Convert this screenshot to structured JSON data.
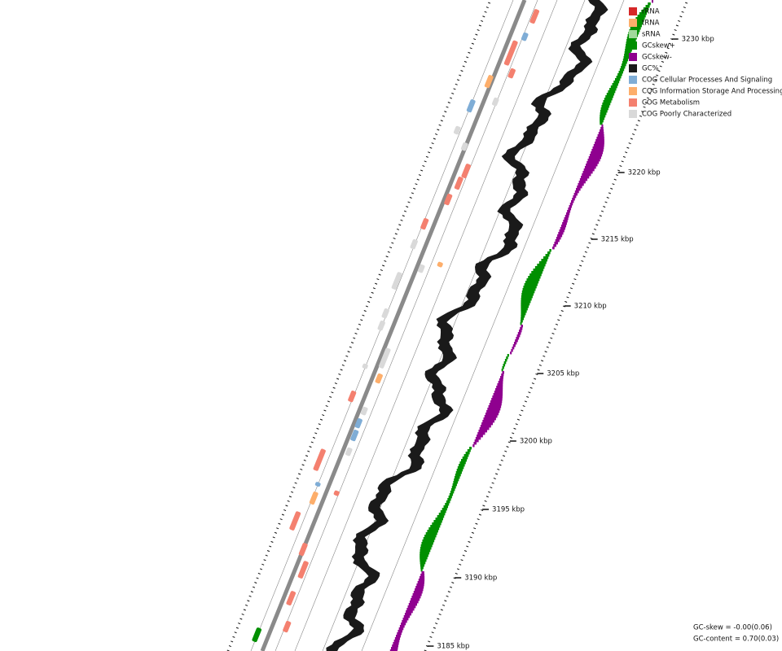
{
  "legend": [
    {
      "label": "rRNA",
      "color": "#d62728"
    },
    {
      "label": "tRNA",
      "color": "#fdae6b"
    },
    {
      "label": "sRNA",
      "color": "#a1d99b"
    },
    {
      "label": "GCskew+",
      "color": "#008f00"
    },
    {
      "label": "GCskew-",
      "color": "#8f008f"
    },
    {
      "label": "GC%",
      "color": "#1a1a1a"
    },
    {
      "label": "COG Cellular Processes And Signaling",
      "color": "#7fadd6"
    },
    {
      "label": "COG Information Storage And Processing",
      "color": "#fdae6b"
    },
    {
      "label": "COG Metabolism",
      "color": "#f4806f"
    },
    {
      "label": "COG Poorly Characterized",
      "color": "#d9d9d9"
    }
  ],
  "ticks": [
    "3185 kbp",
    "3190 kbp",
    "3195 kbp",
    "3200 kbp",
    "3205 kbp",
    "3210 kbp",
    "3215 kbp",
    "3220 kbp",
    "3230 kbp"
  ],
  "footer": {
    "gc_skew": "GC-skew = -0.00(0.06)",
    "gc_content": "GC-content = 0.70(0.03)"
  }
}
